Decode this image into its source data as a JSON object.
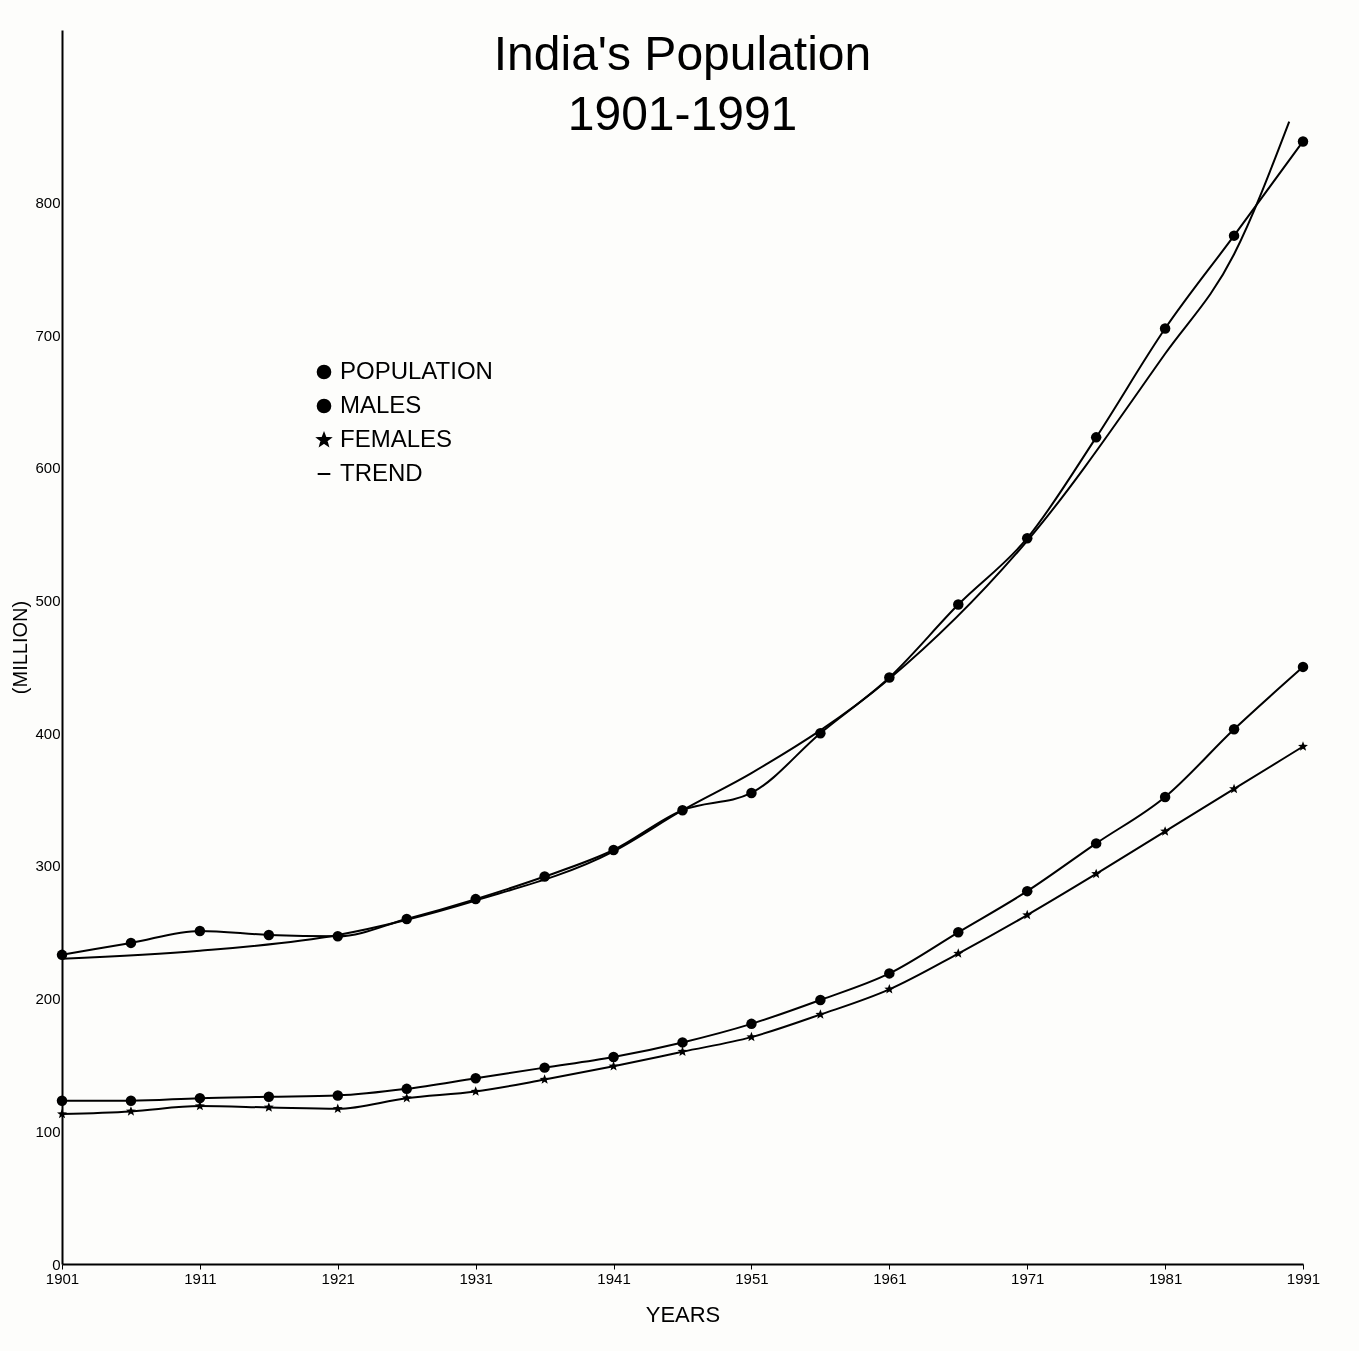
{
  "chart_data": {
    "type": "line",
    "title": "India's Population",
    "subtitle": "1901-1991",
    "xlabel": "YEARS",
    "ylabel": "(MILLION)",
    "xlim": [
      1901,
      1991
    ],
    "xticks": [
      1901,
      1911,
      1921,
      1931,
      1941,
      1951,
      1961,
      1971,
      1981,
      1991
    ],
    "ylim": [
      0,
      930
    ],
    "yticks": [
      0,
      100,
      200,
      300,
      400,
      500,
      600,
      700,
      800
    ],
    "grid": false,
    "legend": "top left",
    "series": [
      {
        "name": "POPULATION",
        "color": "#000000",
        "marker": "circle",
        "x": [
          1901,
          1906,
          1911,
          1916,
          1921,
          1926,
          1931,
          1936,
          1941,
          1946,
          1951,
          1956,
          1961,
          1966,
          1971,
          1976,
          1981,
          1986,
          1991
        ],
        "values": [
          233,
          242,
          251,
          248,
          247,
          260,
          275,
          292,
          312,
          342,
          355,
          400,
          442,
          497,
          547,
          623,
          705,
          775,
          846
        ]
      },
      {
        "name": "MALES",
        "color": "#000000",
        "marker": "circle",
        "x": [
          1901,
          1906,
          1911,
          1916,
          1921,
          1926,
          1931,
          1936,
          1941,
          1946,
          1951,
          1956,
          1961,
          1966,
          1971,
          1976,
          1981,
          1986,
          1991
        ],
        "values": [
          123,
          123,
          125,
          126,
          127,
          132,
          140,
          148,
          156,
          167,
          181,
          199,
          219,
          250,
          281,
          317,
          352,
          403,
          450
        ]
      },
      {
        "name": "FEMALES",
        "color": "#000000",
        "marker": "star",
        "x": [
          1901,
          1906,
          1911,
          1916,
          1921,
          1926,
          1931,
          1936,
          1941,
          1946,
          1951,
          1956,
          1961,
          1966,
          1971,
          1976,
          1981,
          1986,
          1991
        ],
        "values": [
          113,
          115,
          119,
          118,
          117,
          125,
          130,
          139,
          149,
          160,
          171,
          188,
          207,
          234,
          263,
          294,
          326,
          358,
          390
        ]
      },
      {
        "name": "TREND",
        "color": "#000000",
        "marker": "none",
        "x": [
          1901,
          1911,
          1921,
          1931,
          1941,
          1946,
          1951,
          1961,
          1971,
          1981,
          1986,
          1990
        ],
        "values": [
          230,
          236,
          248,
          274,
          311,
          342,
          370,
          441,
          545,
          686,
          761,
          861
        ]
      }
    ]
  }
}
